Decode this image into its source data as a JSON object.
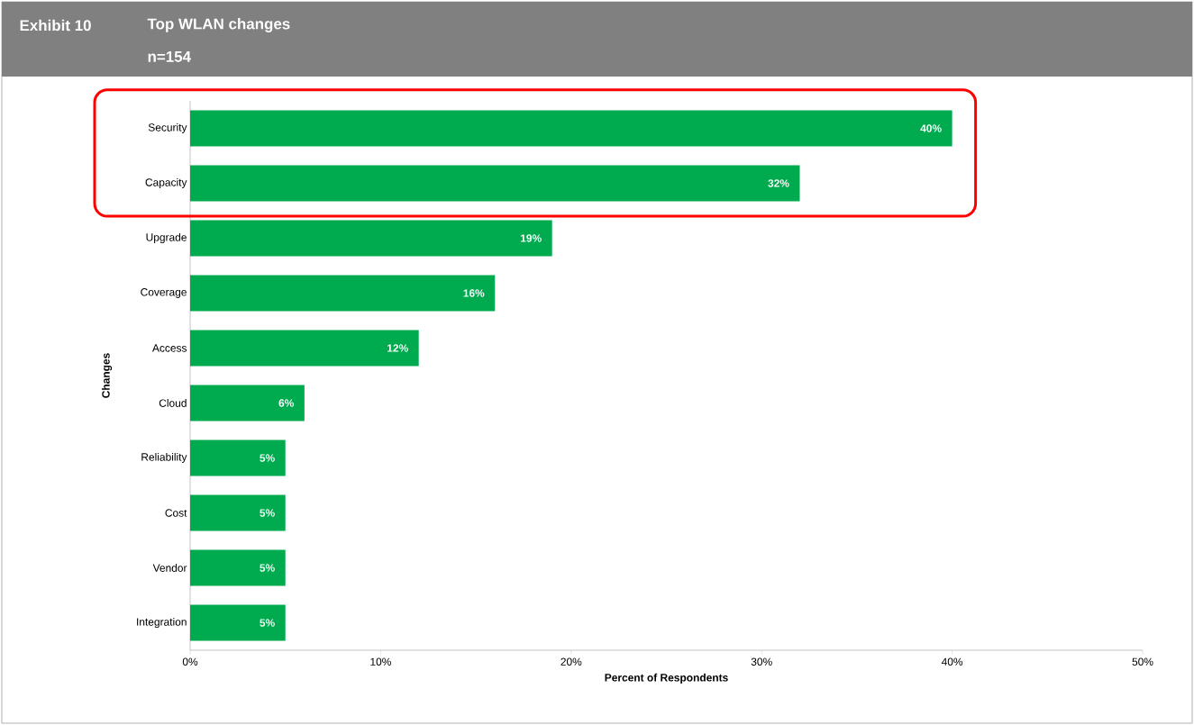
{
  "chart_data": {
    "type": "bar",
    "orientation": "horizontal",
    "title": "Top WLAN changes",
    "subtitle": "n=154",
    "annotations": [
      "Exhibit 10"
    ],
    "xlabel": "Percent of Respondents",
    "ylabel": "Changes",
    "categories": [
      "Security",
      "Capacity",
      "Upgrade",
      "Coverage",
      "Access",
      "Cloud",
      "Reliability",
      "Cost",
      "Vendor",
      "Integration"
    ],
    "values": [
      40,
      32,
      19,
      16,
      12,
      6,
      5,
      5,
      5,
      5
    ],
    "value_labels": [
      "40%",
      "32%",
      "19%",
      "16%",
      "12%",
      "6%",
      "5%",
      "5%",
      "5%",
      "5%"
    ],
    "color": "#00aa4f",
    "xlim": [
      0,
      50
    ],
    "xticks": [
      {
        "value": 0,
        "label": "0%"
      },
      {
        "value": 10,
        "label": "10%"
      },
      {
        "value": 20,
        "label": "20%"
      },
      {
        "value": 30,
        "label": "30%"
      },
      {
        "value": 40,
        "label": "40%"
      },
      {
        "value": 50,
        "label": "50%"
      }
    ],
    "grid": false
  }
}
